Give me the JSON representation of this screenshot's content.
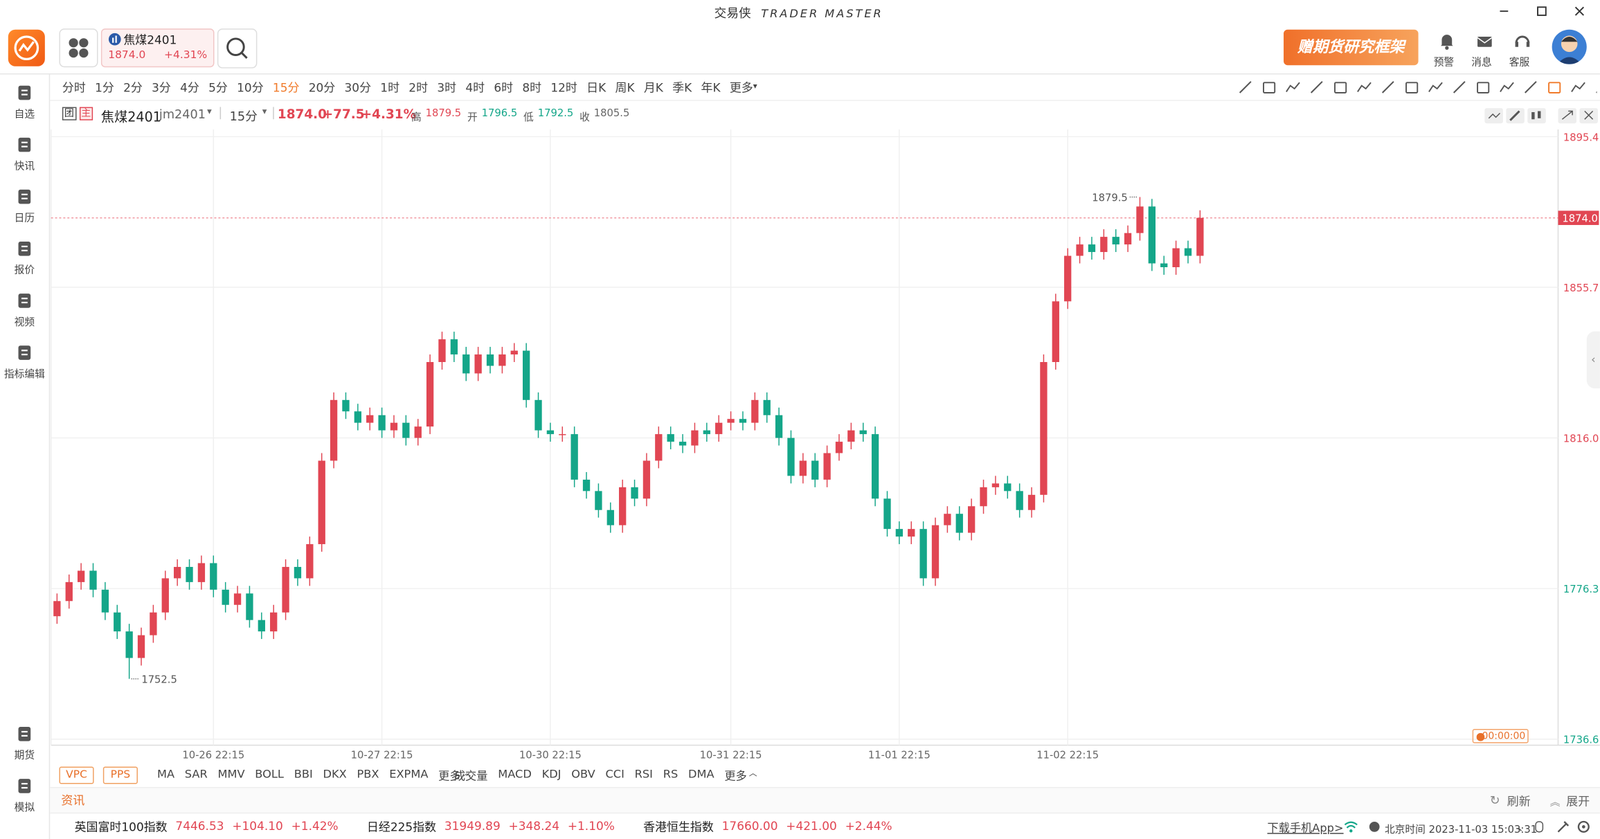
{
  "app": {
    "title": "交易侠",
    "subtitle": "TRADER MASTER"
  },
  "tab": {
    "name": "焦煤2401",
    "price": "1874.0",
    "change_pct": "+4.31%"
  },
  "banner": "赠期货研究框架",
  "top_actions": [
    "预警",
    "消息",
    "客服"
  ],
  "sidebar": {
    "top": [
      "自选",
      "快讯",
      "日历",
      "报价",
      "视频",
      "指标编辑"
    ],
    "bottom": [
      "期货",
      "模拟"
    ]
  },
  "periods": [
    "分时",
    "1分",
    "2分",
    "3分",
    "4分",
    "5分",
    "10分",
    "15分",
    "20分",
    "30分",
    "1时",
    "2时",
    "3时",
    "4时",
    "6时",
    "8时",
    "12时",
    "日K",
    "周K",
    "月K",
    "季K",
    "年K",
    "更多"
  ],
  "active_period_index": 7,
  "chart_header": {
    "badges": [
      "团",
      "主"
    ],
    "name": "焦煤2401",
    "code": "jm2401",
    "period": "15分",
    "price": "1874.0",
    "change": "+77.5",
    "change_pct": "+4.31%",
    "stats": [
      {
        "label": "高",
        "value": "1879.5",
        "color": "#e14653"
      },
      {
        "label": "开",
        "value": "1796.5",
        "color": "#14a689"
      },
      {
        "label": "低",
        "value": "1792.5",
        "color": "#14a689"
      },
      {
        "label": "收",
        "value": "1805.5",
        "color": "#666666"
      }
    ]
  },
  "chart_data": {
    "type": "candlestick",
    "categories": [
      null,
      null,
      null,
      null,
      null,
      null,
      null,
      null,
      null,
      null,
      null,
      null,
      null,
      "10-26 22:15",
      null,
      null,
      null,
      null,
      null,
      null,
      null,
      null,
      null,
      null,
      null,
      null,
      null,
      "10-27 22:15",
      null,
      null,
      null,
      null,
      null,
      null,
      null,
      null,
      null,
      null,
      null,
      null,
      null,
      "10-30 22:15",
      null,
      null,
      null,
      null,
      null,
      null,
      null,
      null,
      null,
      null,
      null,
      null,
      null,
      null,
      "10-31 22:15",
      null,
      null,
      null,
      null,
      null,
      null,
      null,
      null,
      null,
      null,
      null,
      null,
      null,
      "11-01 22:15",
      null,
      null,
      null,
      null,
      null,
      null,
      null,
      null,
      null,
      null,
      null,
      null,
      null,
      "11-02 22:15",
      null,
      null,
      null,
      null,
      null,
      null,
      null,
      null,
      null,
      null,
      null
    ],
    "open": [
      1769,
      1773,
      1778,
      1781,
      1776,
      1770,
      1765,
      1758,
      1764,
      1770,
      1779,
      1782,
      1778,
      1783,
      1776,
      1772,
      1775,
      1768,
      1765,
      1770,
      1782,
      1779,
      1788,
      1810,
      1826,
      1823,
      1820,
      1822,
      1818,
      1820,
      1816,
      1819,
      1836,
      1842,
      1838,
      1833,
      1838,
      1835,
      1838,
      1839,
      1826,
      1818,
      1817,
      1817,
      1805,
      1802,
      1797,
      1793,
      1803,
      1800,
      1810,
      1817,
      1815,
      1814,
      1818,
      1817,
      1820,
      1821,
      1820,
      1826,
      1822,
      1816,
      1806,
      1810,
      1805,
      1812,
      1815,
      1818,
      1817,
      1800,
      1792,
      1790,
      1792,
      1779,
      1793,
      1796,
      1791,
      1798,
      1803,
      1804,
      1802,
      1797,
      1801,
      1836,
      1852,
      1864,
      1867,
      1865,
      1869,
      1867,
      1870,
      1877,
      1862,
      1861,
      1866,
      1864
    ],
    "high": [
      1775,
      1780,
      1783,
      1783,
      1778,
      1772,
      1767,
      1766,
      1772,
      1781,
      1784,
      1784,
      1785,
      1785,
      1778,
      1777,
      1777,
      1770,
      1772,
      1784,
      1784,
      1790,
      1812,
      1828,
      1828,
      1825,
      1824,
      1824,
      1822,
      1822,
      1821,
      1838,
      1844,
      1844,
      1840,
      1840,
      1840,
      1840,
      1841,
      1841,
      1828,
      1820,
      1819,
      1819,
      1807,
      1804,
      1799,
      1805,
      1805,
      1812,
      1819,
      1819,
      1817,
      1820,
      1820,
      1822,
      1823,
      1823,
      1828,
      1828,
      1824,
      1818,
      1812,
      1812,
      1814,
      1817,
      1820,
      1820,
      1819,
      1802,
      1794,
      1794,
      1794,
      1795,
      1798,
      1798,
      1800,
      1805,
      1806,
      1806,
      1804,
      1803,
      1838,
      1854,
      1866,
      1869,
      1869,
      1871,
      1871,
      1872,
      1879.5,
      1879,
      1864,
      1868,
      1868,
      1876
    ],
    "low": [
      1767,
      1771,
      1776,
      1774,
      1768,
      1763,
      1752.5,
      1756,
      1762,
      1768,
      1777,
      1776,
      1776,
      1774,
      1770,
      1770,
      1766,
      1763,
      1763,
      1768,
      1777,
      1777,
      1786,
      1808,
      1821,
      1818,
      1818,
      1816,
      1816,
      1814,
      1814,
      1817,
      1834,
      1836,
      1831,
      1831,
      1833,
      1833,
      1836,
      1824,
      1816,
      1815,
      1815,
      1803,
      1800,
      1795,
      1791,
      1791,
      1798,
      1798,
      1808,
      1813,
      1812,
      1812,
      1815,
      1815,
      1818,
      1818,
      1818,
      1820,
      1814,
      1804,
      1804,
      1803,
      1803,
      1810,
      1813,
      1815,
      1798,
      1790,
      1788,
      1788,
      1777,
      1777,
      1791,
      1789,
      1789,
      1796,
      1801,
      1800,
      1795,
      1795,
      1799,
      1834,
      1850,
      1862,
      1863,
      1863,
      1865,
      1865,
      1868,
      1860,
      1859,
      1859,
      1862,
      1862
    ],
    "close": [
      1773,
      1778,
      1781,
      1776,
      1770,
      1765,
      1758,
      1764,
      1770,
      1779,
      1782,
      1778,
      1783,
      1776,
      1772,
      1775,
      1768,
      1765,
      1770,
      1782,
      1779,
      1788,
      1810,
      1826,
      1823,
      1820,
      1822,
      1818,
      1820,
      1816,
      1819,
      1836,
      1842,
      1838,
      1833,
      1838,
      1835,
      1838,
      1839,
      1826,
      1818,
      1817,
      1817,
      1805,
      1802,
      1797,
      1793,
      1803,
      1800,
      1810,
      1817,
      1815,
      1814,
      1818,
      1817,
      1820,
      1821,
      1820,
      1826,
      1822,
      1816,
      1806,
      1810,
      1805,
      1812,
      1815,
      1818,
      1817,
      1800,
      1792,
      1790,
      1792,
      1779,
      1793,
      1796,
      1791,
      1798,
      1803,
      1804,
      1802,
      1797,
      1801,
      1836,
      1852,
      1864,
      1867,
      1865,
      1869,
      1867,
      1870,
      1877,
      1862,
      1861,
      1866,
      1864,
      1874
    ],
    "up_color": "#e14653",
    "down_color": "#14a689",
    "ylim": [
      1735,
      1897.3
    ],
    "yticks": [
      1895.4,
      1855.7,
      {
        "value": 1816,
        "label": "1816.0"
      },
      1776.3,
      1736.6
    ],
    "last_price": {
      "value": 1874,
      "label": "1874.0"
    },
    "max_index": 90,
    "min_index": 6,
    "grid": true
  },
  "countdown": "00:00:00",
  "indicators": {
    "tags": [
      "VPC",
      "PPS"
    ],
    "main": [
      "MA",
      "SAR",
      "MMV",
      "BOLL",
      "BBI",
      "DKX",
      "PBX",
      "EXPMA",
      "更多"
    ],
    "sub": [
      "成交量",
      "MACD",
      "KDJ",
      "OBV",
      "CCI",
      "RSI",
      "RS",
      "DMA",
      "更多"
    ]
  },
  "news": {
    "title": "资讯",
    "refresh": "刷新",
    "expand": "展开"
  },
  "tickers": [
    {
      "name": "英国富时100指数",
      "value": "7446.53",
      "change": "+104.10",
      "pct": "+1.42%"
    },
    {
      "name": "日经225指数",
      "value": "31949.89",
      "change": "+348.24",
      "pct": "+1.10%"
    },
    {
      "name": "香港恒生指数",
      "value": "17660.00",
      "change": "+421.00",
      "pct": "+2.44%"
    }
  ],
  "footer": {
    "download": "下载手机App>",
    "time": "北京时间 2023-11-03 15:03:31"
  }
}
